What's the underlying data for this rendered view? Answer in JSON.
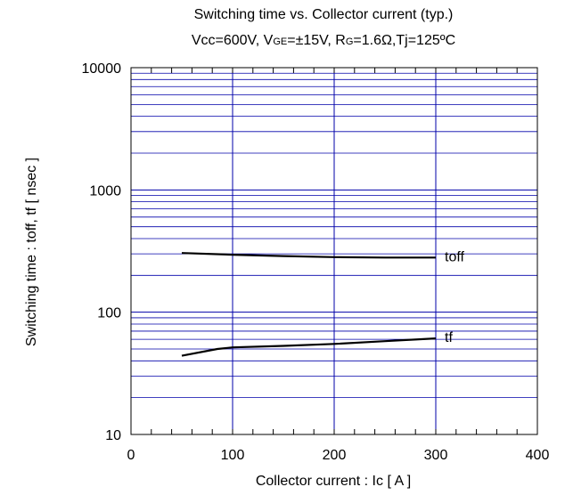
{
  "chart_data": {
    "type": "line",
    "title": "Switching time vs. Collector current (typ.)",
    "subtitle": {
      "parts": [
        {
          "text": "Vcc=600V, V",
          "small": false
        },
        {
          "text": "GE",
          "small": true
        },
        {
          "text": "=±15V, R",
          "small": false
        },
        {
          "text": "G",
          "small": true
        },
        {
          "text": "=1.6Ω,Tj=125ºC",
          "small": false
        }
      ]
    },
    "xlabel": "Collector current : Ic [ A ]",
    "ylabel": "Switching time : toff, tf [ nsec ]",
    "xlim": [
      0,
      400
    ],
    "ylim": [
      10,
      10000
    ],
    "y_scale": "log",
    "x_ticks": [
      "0",
      "100",
      "200",
      "300",
      "400"
    ],
    "y_ticks": [
      "10",
      "100",
      "1000",
      "10000"
    ],
    "grid": true,
    "line_color": "#000000",
    "grid_color": "#0000aa",
    "series": [
      {
        "name": "toff",
        "x": [
          50,
          100,
          150,
          200,
          250,
          300
        ],
        "y": [
          305,
          295,
          288,
          282,
          280,
          280
        ]
      },
      {
        "name": "tf",
        "x": [
          50,
          85,
          100,
          150,
          200,
          250,
          300
        ],
        "y": [
          44,
          50,
          51.5,
          53,
          55,
          58,
          61
        ]
      }
    ]
  }
}
